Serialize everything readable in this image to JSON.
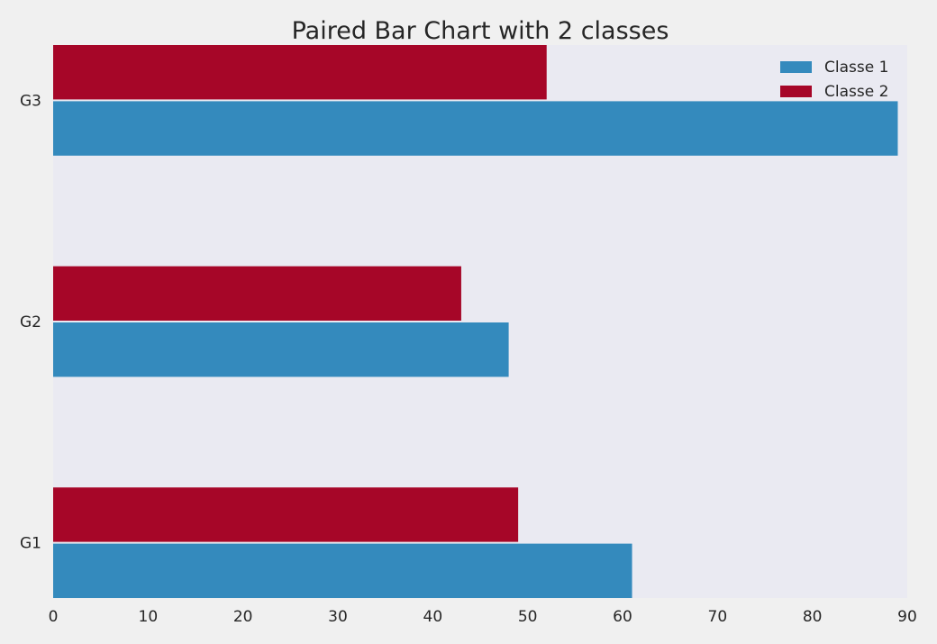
{
  "chart_data": {
    "type": "bar",
    "orientation": "horizontal",
    "title": "Paired Bar Chart with 2 classes",
    "xlabel": "",
    "ylabel": "",
    "categories": [
      "G1",
      "G2",
      "G3"
    ],
    "series": [
      {
        "name": "Classe 1",
        "values": [
          61,
          48,
          89
        ],
        "color": "#348abd"
      },
      {
        "name": "Classe 2",
        "values": [
          49,
          43,
          52
        ],
        "color": "#a60628"
      }
    ],
    "xlim": [
      0,
      90
    ],
    "xticks": [
      0,
      10,
      20,
      30,
      40,
      50,
      60,
      70,
      80,
      90
    ],
    "grid": false,
    "legend_position": "top-right",
    "plot_background": "#eaeaf2",
    "figure_background": "#f0f0f0"
  }
}
